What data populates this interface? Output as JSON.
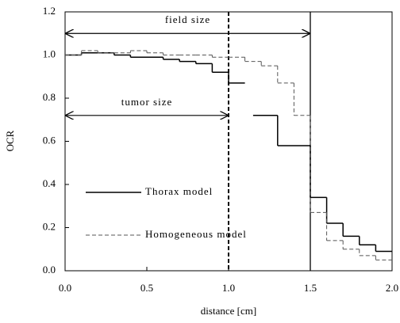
{
  "chart_data": {
    "type": "step",
    "xlabel": "distance [cm]",
    "ylabel": "OCR",
    "xlim": [
      0,
      2.0
    ],
    "ylim": [
      0,
      1.2
    ],
    "xticks": [
      {
        "value": 0,
        "label": "0.0"
      },
      0.5,
      {
        "value": 1.0,
        "label": "1.0"
      },
      1.5,
      {
        "value": 2.0,
        "label": "2.0"
      }
    ],
    "yticks": [
      {
        "value": 0,
        "label": "0.0"
      },
      0.2,
      0.4,
      0.6,
      0.8,
      {
        "value": 1.0,
        "label": "1.0"
      },
      1.2
    ],
    "grid": false,
    "legend": "lower left",
    "series": [
      {
        "name": "Thorax model",
        "color": "#000000",
        "dash": "solid",
        "x": [
          0,
          0.1,
          0.2,
          0.3,
          0.4,
          0.5,
          0.6,
          0.7,
          0.8,
          0.9,
          1.0,
          1.1,
          1.15,
          1.3,
          1.5,
          1.6,
          1.7,
          1.8,
          1.9
        ],
        "values": [
          1.0,
          1.01,
          1.01,
          1.0,
          0.99,
          0.99,
          0.98,
          0.97,
          0.96,
          0.92,
          0.87,
          null,
          0.72,
          0.58,
          0.34,
          0.22,
          0.16,
          0.12,
          0.09
        ]
      },
      {
        "name": "Homogeneous model",
        "color": "#555555",
        "dash": "dashed",
        "x": [
          0,
          0.1,
          0.2,
          0.3,
          0.4,
          0.5,
          0.6,
          0.7,
          0.8,
          0.9,
          1.0,
          1.1,
          1.2,
          1.3,
          1.4,
          1.5,
          1.6,
          1.7,
          1.8,
          1.9
        ],
        "values": [
          1.0,
          1.02,
          1.01,
          1.01,
          1.02,
          1.01,
          1.0,
          1.0,
          1.0,
          0.99,
          0.99,
          0.97,
          0.95,
          0.87,
          0.72,
          0.27,
          0.14,
          0.1,
          0.07,
          0.05
        ]
      }
    ],
    "vlines": [
      {
        "x": 1.0,
        "style": "dashed"
      },
      {
        "x": 1.5,
        "style": "solid"
      }
    ],
    "annotations": [
      {
        "text": "field size",
        "x_from": 0,
        "x_to": 1.5,
        "y": 1.1
      },
      {
        "text": "tumor size",
        "x_from": 0,
        "x_to": 1.0,
        "y": 0.72
      }
    ]
  }
}
